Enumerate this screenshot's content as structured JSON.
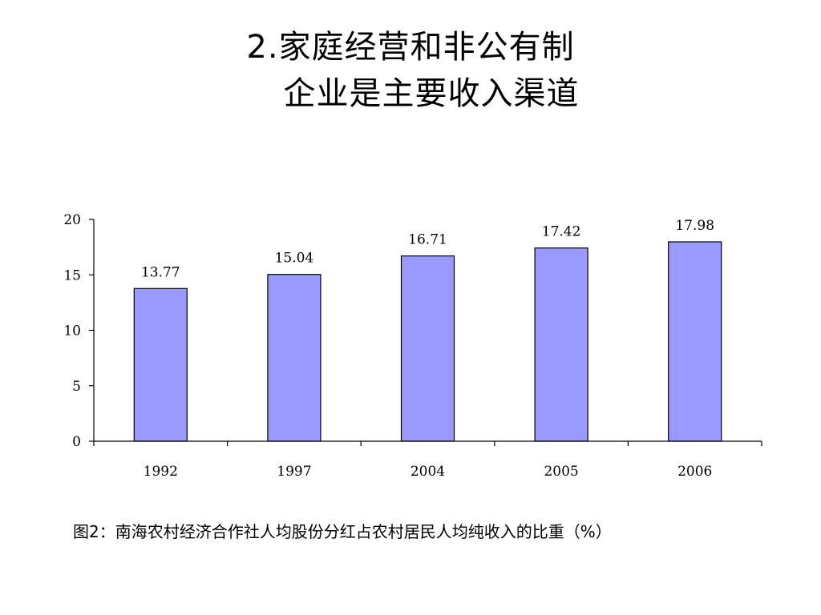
{
  "slide": {
    "title_line1": "2.家庭经营和非公有制",
    "title_line2": "企业是主要收入渠道",
    "caption": "图2：南海农村经济合作社人均股份分红占农村居民人均纯收入的比重（%）"
  },
  "chart_data": {
    "type": "bar",
    "title": "",
    "xlabel": "",
    "ylabel": "",
    "categories": [
      "1992",
      "1997",
      "2004",
      "2005",
      "2006"
    ],
    "values": [
      13.77,
      15.04,
      16.71,
      17.42,
      17.98
    ],
    "value_labels": [
      "13.77",
      "15.04",
      "16.71",
      "17.42",
      "17.98"
    ],
    "ylim": [
      0,
      20
    ],
    "yticks": [
      0,
      5,
      10,
      15,
      20
    ],
    "ytick_labels": [
      "0",
      "5",
      "10",
      "15",
      "20"
    ],
    "grid": false,
    "legend": "none",
    "bar_color": "#9999ff",
    "bar_edge_color": "#000000"
  }
}
